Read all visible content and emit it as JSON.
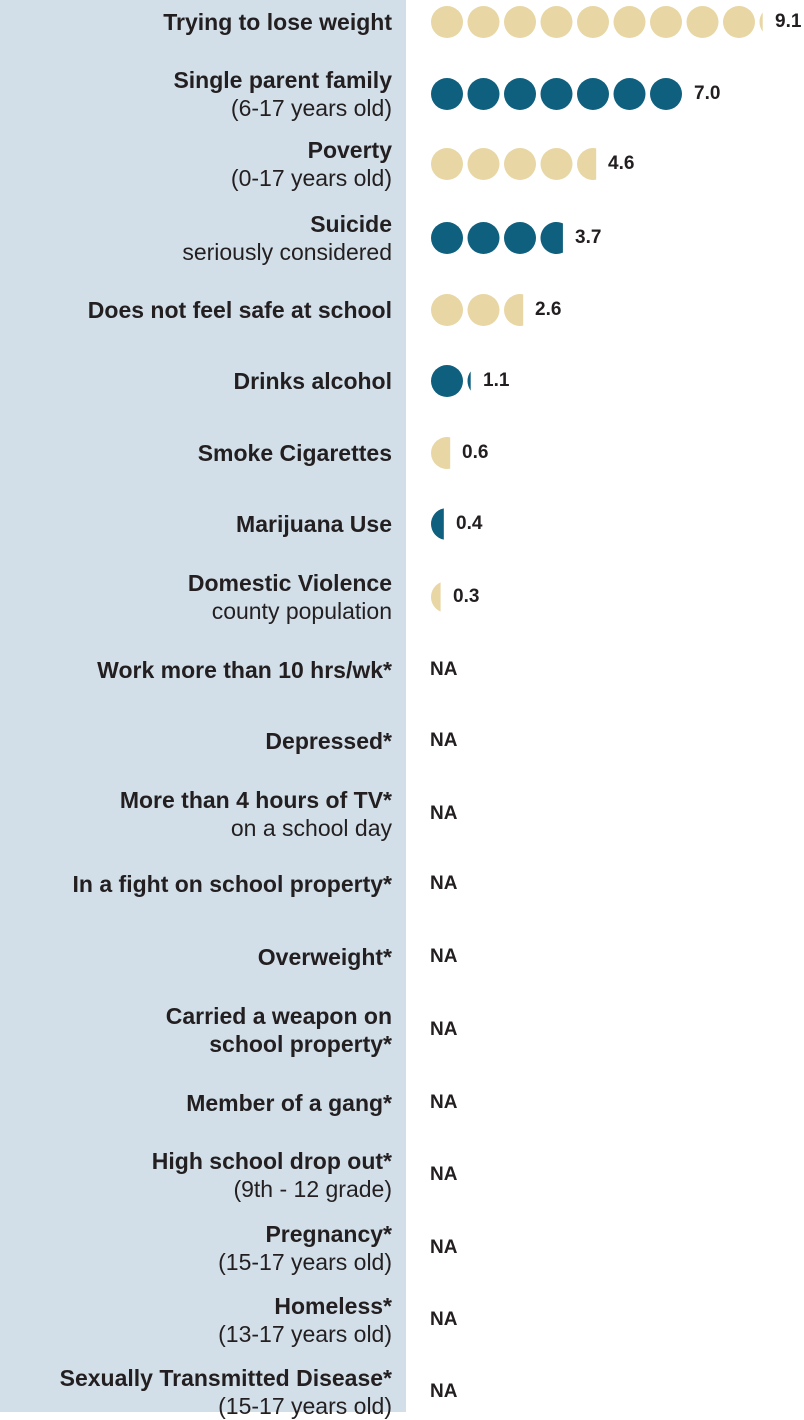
{
  "colors": {
    "panel": "#d2dfe9",
    "tan": "#e8d7a4",
    "teal": "#0f5f7e",
    "text": "#231f20"
  },
  "chart_data": {
    "type": "pictograph",
    "rows": [
      {
        "label": "Trying to lose weight",
        "sub": "",
        "value": 9.1,
        "display": "9.1",
        "color": "tan"
      },
      {
        "label": "Single parent family",
        "sub": "(6-17 years old)",
        "value": 7.0,
        "display": "7.0",
        "color": "teal"
      },
      {
        "label": "Poverty",
        "sub": "(0-17 years old)",
        "value": 4.6,
        "display": "4.6",
        "color": "tan"
      },
      {
        "label": "Suicide",
        "sub": "seriously considered",
        "value": 3.7,
        "display": "3.7",
        "color": "teal"
      },
      {
        "label": "Does not feel safe at school",
        "sub": "",
        "value": 2.6,
        "display": "2.6",
        "color": "tan"
      },
      {
        "label": "Drinks alcohol",
        "sub": "",
        "value": 1.1,
        "display": "1.1",
        "color": "teal"
      },
      {
        "label": "Smoke Cigarettes",
        "sub": "",
        "value": 0.6,
        "display": "0.6",
        "color": "tan"
      },
      {
        "label": "Marijuana Use",
        "sub": "",
        "value": 0.4,
        "display": "0.4",
        "color": "teal"
      },
      {
        "label": "Domestic Violence",
        "sub": "county population",
        "value": 0.3,
        "display": "0.3",
        "color": "tan"
      },
      {
        "label": "Work more than 10 hrs/wk*",
        "sub": "",
        "value": null,
        "display": "NA"
      },
      {
        "label": "Depressed*",
        "sub": "",
        "value": null,
        "display": "NA"
      },
      {
        "label": "More than 4 hours of TV*",
        "sub": "on a school day",
        "value": null,
        "display": "NA"
      },
      {
        "label": "In a fight on school property*",
        "sub": "",
        "value": null,
        "display": "NA"
      },
      {
        "label": "Overweight*",
        "sub": "",
        "value": null,
        "display": "NA"
      },
      {
        "label": "Carried a weapon on school property*",
        "sub": "",
        "value": null,
        "display": "NA"
      },
      {
        "label": "Member of a gang*",
        "sub": "",
        "value": null,
        "display": "NA"
      },
      {
        "label": "High school drop out*",
        "sub": "(9th - 12 grade)",
        "value": null,
        "display": "NA"
      },
      {
        "label": "Pregnancy*",
        "sub": "(15-17 years old)",
        "value": null,
        "display": "NA"
      },
      {
        "label": "Homeless*",
        "sub": "(13-17 years old)",
        "value": null,
        "display": "NA"
      },
      {
        "label": "Sexually Transmitted Disease*",
        "sub": "(15-17 years old)",
        "value": null,
        "display": "NA"
      }
    ]
  }
}
